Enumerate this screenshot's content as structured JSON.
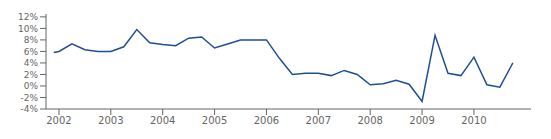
{
  "chart_data": {
    "type": "line",
    "x": [
      2001.9,
      2002.0,
      2002.25,
      2002.5,
      2002.75,
      2003.0,
      2003.25,
      2003.5,
      2003.75,
      2004.0,
      2004.25,
      2004.5,
      2004.75,
      2005.0,
      2005.25,
      2005.5,
      2005.75,
      2006.0,
      2006.25,
      2006.5,
      2006.75,
      2007.0,
      2007.25,
      2007.5,
      2007.75,
      2008.0,
      2008.25,
      2008.5,
      2008.75,
      2009.0,
      2009.25,
      2009.5,
      2009.75,
      2010.0,
      2010.25,
      2010.5,
      2010.75
    ],
    "values": [
      0.058,
      0.06,
      0.073,
      0.063,
      0.06,
      0.06,
      0.068,
      0.098,
      0.075,
      0.072,
      0.07,
      0.083,
      0.085,
      0.066,
      0.073,
      0.08,
      0.08,
      0.08,
      0.048,
      0.02,
      0.022,
      0.022,
      0.018,
      0.027,
      0.02,
      0.002,
      0.004,
      0.01,
      0.003,
      -0.027,
      0.088,
      0.022,
      0.018,
      0.05,
      0.002,
      -0.002,
      0.04
    ],
    "color": "#1F4E96",
    "xlim": [
      2001.75,
      2011.1
    ],
    "xticks": [
      2002,
      2003,
      2004,
      2005,
      2006,
      2007,
      2008,
      2009,
      2010
    ],
    "ylim": [
      -0.04,
      0.125
    ],
    "yticks": [
      {
        "value": -0.04,
        "label": "-4%"
      },
      {
        "value": -0.02,
        "label": "-2%"
      },
      {
        "value": 0.0,
        "label": "0%"
      },
      {
        "value": 0.02,
        "label": "2%"
      },
      {
        "value": 0.04,
        "label": "4%"
      },
      {
        "value": 0.06,
        "label": "6%"
      },
      {
        "value": 0.08,
        "label": "8%"
      },
      {
        "value": 0.1,
        "label": "10%"
      },
      {
        "value": 0.12,
        "label": "12%"
      }
    ],
    "grid": false
  }
}
